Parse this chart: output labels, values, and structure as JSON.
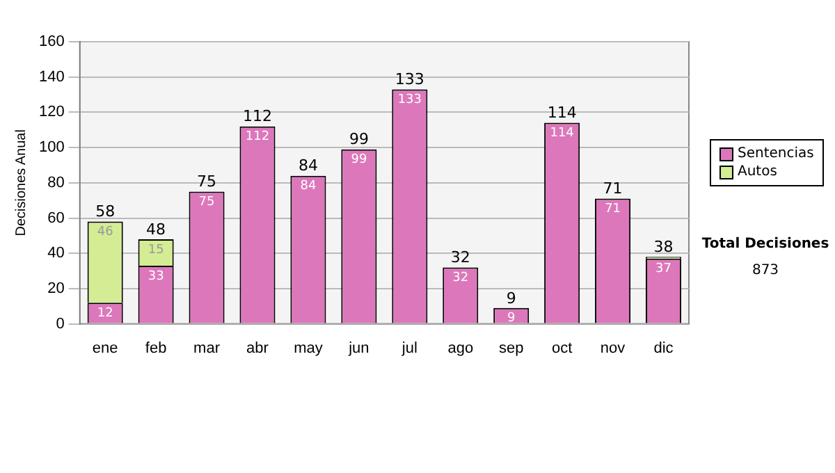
{
  "chart_data": {
    "type": "bar",
    "stacked": true,
    "ylabel": "Decisiones Anual",
    "categories": [
      "ene",
      "feb",
      "mar",
      "abr",
      "may",
      "jun",
      "jul",
      "ago",
      "sep",
      "oct",
      "nov",
      "dic"
    ],
    "series": [
      {
        "name": "Sentencias",
        "color": "#dd77bb",
        "values": [
          12,
          33,
          75,
          112,
          84,
          99,
          133,
          32,
          9,
          114,
          71,
          37
        ],
        "value_labels": [
          "12",
          "33",
          "75",
          "112",
          "84",
          "99",
          "133",
          "32",
          "9",
          "114",
          "71",
          "37"
        ]
      },
      {
        "name": "Autos",
        "color": "#d4ec94",
        "values": [
          46,
          15,
          0,
          0,
          0,
          0,
          0,
          0,
          0,
          0,
          0,
          1
        ],
        "value_labels": [
          "46",
          "15",
          null,
          null,
          null,
          null,
          null,
          null,
          null,
          null,
          null,
          null
        ]
      }
    ],
    "totals": [
      "58",
      "48",
      "75",
      "112",
      "84",
      "99",
      "133",
      "32",
      "9",
      "114",
      "71",
      "38"
    ],
    "ylim": [
      0,
      160
    ],
    "yticks": [
      0,
      20,
      40,
      60,
      80,
      100,
      120,
      140,
      160
    ],
    "grid": "y",
    "legend": "right",
    "annotations": [
      "Total Decisiones",
      "873"
    ]
  }
}
